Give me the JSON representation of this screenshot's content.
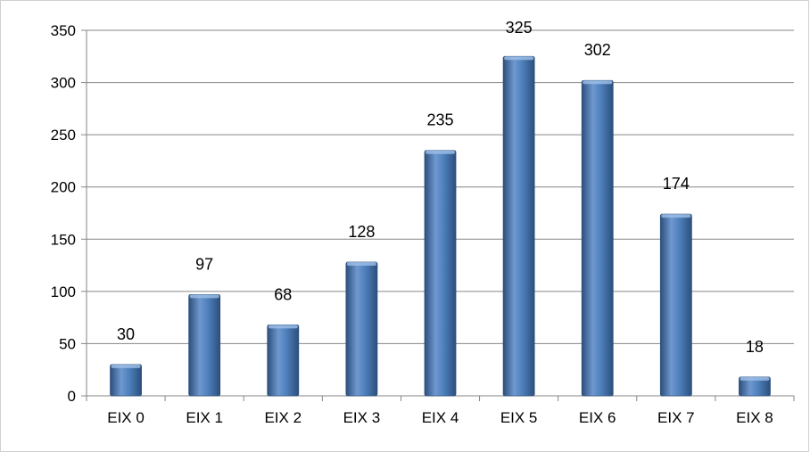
{
  "chart_data": {
    "type": "bar",
    "categories": [
      "EIX 0",
      "EIX 1",
      "EIX 2",
      "EIX 3",
      "EIX 4",
      "EIX 5",
      "EIX 6",
      "EIX 7",
      "EIX 8"
    ],
    "values": [
      30,
      97,
      68,
      128,
      235,
      325,
      302,
      174,
      18
    ],
    "data_labels": [
      "30",
      "97",
      "68",
      "128",
      "235",
      "325",
      "302",
      "174",
      "18"
    ],
    "title": "",
    "xlabel": "",
    "ylabel": "",
    "ylim": [
      0,
      350
    ],
    "yticks": [
      "0",
      "50",
      "100",
      "150",
      "200",
      "250",
      "300",
      "350"
    ],
    "grid": "horizontal",
    "legend": "none",
    "colors": {
      "bar": "#4f81bd",
      "bar_dark": "#2c4f7c",
      "bar_light": "#8fb3e0",
      "grid": "#868686"
    }
  }
}
